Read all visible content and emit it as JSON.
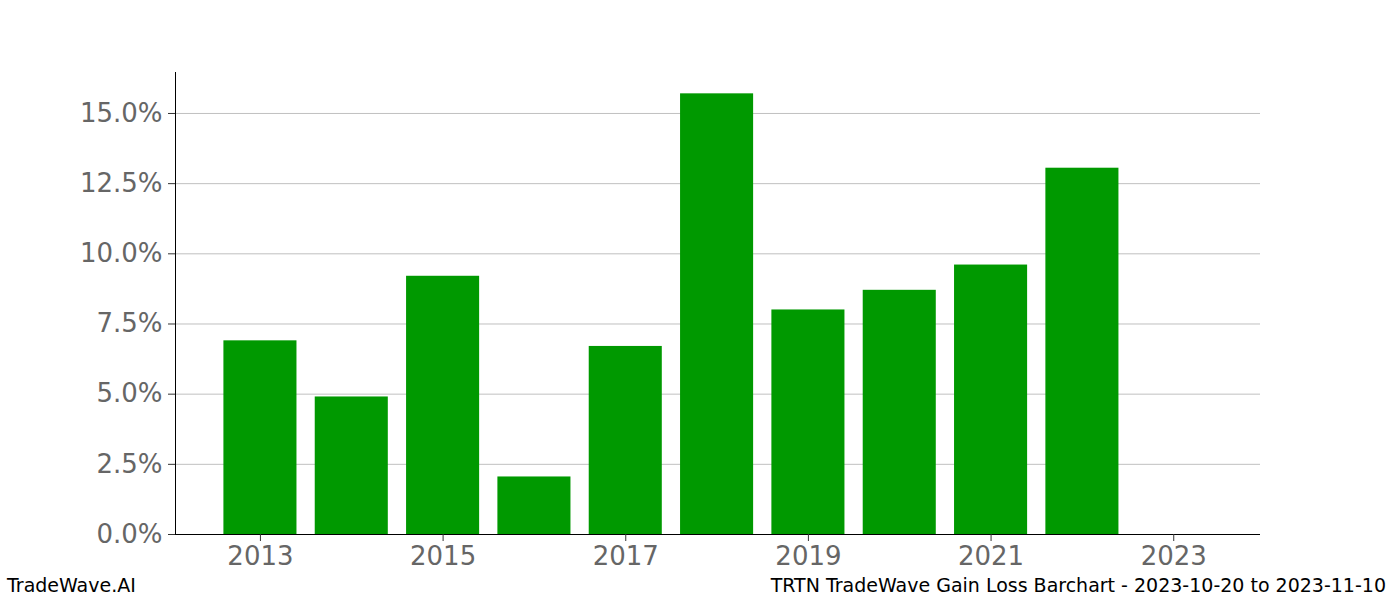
{
  "chart_data": {
    "type": "bar",
    "title": "TRTN TradeWave Gain Loss Barchart - 2023-10-20 to 2023-11-10",
    "annotations": [
      "TradeWave.AI"
    ],
    "x": [
      2013,
      2014,
      2015,
      2016,
      2017,
      2018,
      2019,
      2020,
      2021,
      2022
    ],
    "values": [
      6.9,
      4.9,
      9.2,
      2.05,
      6.7,
      15.7,
      8.0,
      8.7,
      9.6,
      13.05
    ],
    "color": "#009900",
    "xlim": [
      2012.07,
      2023.95
    ],
    "xticks": [
      2013,
      2015,
      2017,
      2019,
      2021,
      2023
    ],
    "ylim": [
      0,
      16.46
    ],
    "yticks": [
      {
        "value": 0,
        "label": "0.0%"
      },
      {
        "value": 2.5,
        "label": "2.5%"
      },
      {
        "value": 5,
        "label": "5.0%"
      },
      {
        "value": 7.5,
        "label": "7.5%"
      },
      {
        "value": 10,
        "label": "10.0%"
      },
      {
        "value": 12.5,
        "label": "12.5%"
      },
      {
        "value": 15,
        "label": "15.0%"
      }
    ],
    "grid": true
  }
}
